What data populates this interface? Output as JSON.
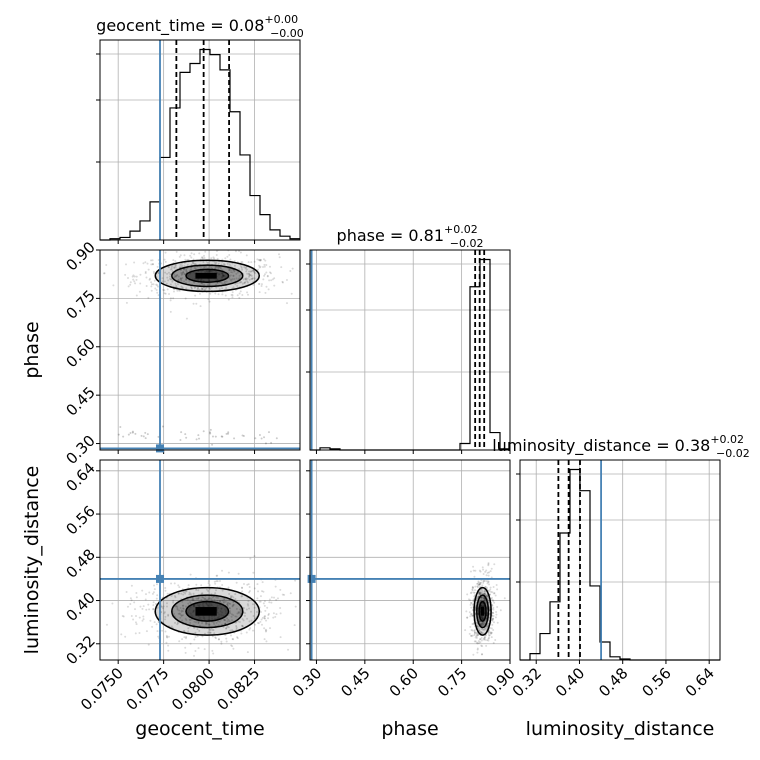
{
  "colors": {
    "truth": "#4682b4",
    "hist": "#000000",
    "grid": "#b0b0b0",
    "quantile": "#000000"
  },
  "chart_data": {
    "type": "corner",
    "parameters": [
      "geocent_time",
      "phase",
      "luminosity_distance"
    ],
    "truths": {
      "geocent_time": 0.0773,
      "phase": 0.285,
      "luminosity_distance": 0.44
    },
    "axes": {
      "geocent_time": {
        "label": "geocent_time",
        "range": [
          0.074,
          0.085
        ],
        "ticks": [
          "0.0750",
          "0.0775",
          "0.0800",
          "0.0825"
        ]
      },
      "phase": {
        "label": "phase",
        "range": [
          0.28,
          0.9
        ],
        "ticks": [
          "0.30",
          "0.45",
          "0.60",
          "0.75",
          "0.90"
        ]
      },
      "luminosity_distance": {
        "label": "luminosity_distance",
        "range": [
          0.29,
          0.66
        ],
        "ticks": [
          "0.32",
          "0.40",
          "0.48",
          "0.56",
          "0.64"
        ]
      }
    },
    "marginals": [
      {
        "parameter": "geocent_time",
        "title_main": "geocent_time = 0.08",
        "title_plus": "+0.00",
        "title_minus": "−0.00",
        "quantiles": [
          0.0782,
          0.0797,
          0.0811
        ],
        "bin_edges": [
          0.074,
          0.07455,
          0.0751,
          0.07565,
          0.0762,
          0.07675,
          0.0773,
          0.07785,
          0.0784,
          0.07895,
          0.0795,
          0.08005,
          0.0806,
          0.08115,
          0.0817,
          0.08225,
          0.0828,
          0.08335,
          0.0839,
          0.08445,
          0.085
        ],
        "counts": [
          0,
          1,
          2,
          7,
          15,
          30,
          65,
          104,
          132,
          139,
          150,
          146,
          134,
          101,
          67,
          35,
          20,
          8,
          3,
          1
        ]
      },
      {
        "parameter": "phase",
        "title_main": "phase = 0.81",
        "title_plus": "+0.02",
        "title_minus": "−0.02",
        "quantiles": [
          0.792,
          0.806,
          0.82
        ],
        "bin_edges": [
          0.28,
          0.311,
          0.342,
          0.373,
          0.404,
          0.435,
          0.466,
          0.497,
          0.528,
          0.559,
          0.59,
          0.621,
          0.652,
          0.683,
          0.714,
          0.745,
          0.776,
          0.807,
          0.838,
          0.869,
          0.9
        ],
        "counts": [
          0,
          2,
          1,
          0,
          0,
          0,
          0,
          0,
          0,
          0,
          0,
          0,
          0,
          0,
          0,
          6,
          150,
          175,
          16,
          1
        ]
      },
      {
        "parameter": "luminosity_distance",
        "title_main": "luminosity_distance = 0.38",
        "title_plus": "+0.02",
        "title_minus": "−0.02",
        "quantiles": [
          0.361,
          0.38,
          0.401
        ],
        "bin_edges": [
          0.29,
          0.3085,
          0.327,
          0.3455,
          0.364,
          0.3825,
          0.401,
          0.4195,
          0.438,
          0.4565,
          0.475,
          0.4935,
          0.512,
          0.5305,
          0.549,
          0.5675,
          0.586,
          0.6045,
          0.623,
          0.6415,
          0.66
        ],
        "counts": [
          0,
          6,
          25,
          55,
          120,
          180,
          160,
          70,
          17,
          3,
          1,
          0,
          0,
          0,
          0,
          0,
          0,
          0,
          0,
          0
        ]
      }
    ],
    "joint": [
      {
        "x": "geocent_time",
        "y": "phase",
        "center": [
          0.0799,
          0.82
        ],
        "spread": [
          0.0013,
          0.022
        ],
        "secondary_y": 0.33
      },
      {
        "x": "geocent_time",
        "y": "luminosity_distance",
        "center": [
          0.0799,
          0.38
        ],
        "spread": [
          0.0013,
          0.02
        ]
      },
      {
        "x": "phase",
        "y": "luminosity_distance",
        "center": [
          0.815,
          0.38
        ],
        "spread": [
          0.012,
          0.02
        ]
      }
    ]
  }
}
